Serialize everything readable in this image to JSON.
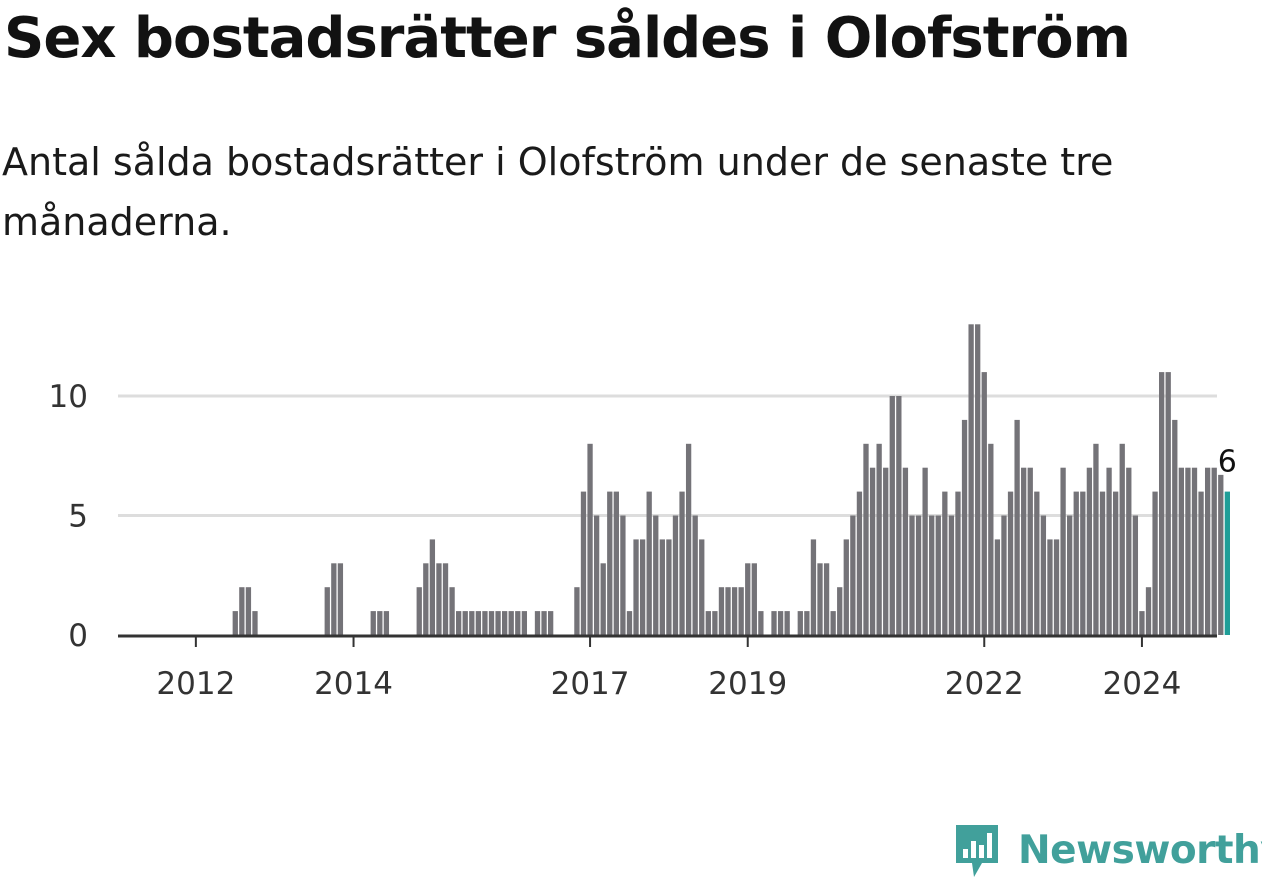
{
  "title": "Sex bostadsrätter såldes i Olofström",
  "subtitle": "Antal sålda bostadsrätter i Olofström under de senaste tre månaderna.",
  "brand": {
    "name": "Newsworthy",
    "logo_icon": "newsworthy-logo-icon"
  },
  "colors": {
    "bar": "#747378",
    "highlight": "#1f9e98",
    "grid": "#dddddd",
    "axis": "#333333",
    "brand": "#41a09b"
  },
  "chart_data": {
    "type": "bar",
    "title": "",
    "xlabel": "",
    "ylabel": "",
    "ylim": [
      0,
      13
    ],
    "yticks": [
      0,
      5,
      10
    ],
    "xticks": [
      {
        "label": "2012",
        "index": 3
      },
      {
        "label": "2014",
        "index": 27
      },
      {
        "label": "2017",
        "index": 63
      },
      {
        "label": "2019",
        "index": 87
      },
      {
        "label": "2022",
        "index": 123
      },
      {
        "label": "2024",
        "index": 147
      }
    ],
    "start_month": "2011-10",
    "frequency": "monthly",
    "values": [
      0,
      0,
      0,
      0,
      0,
      0,
      0,
      0,
      0,
      1,
      2,
      2,
      1,
      0,
      0,
      0,
      0,
      0,
      0,
      0,
      0,
      0,
      0,
      2,
      3,
      3,
      0,
      0,
      0,
      0,
      1,
      1,
      1,
      0,
      0,
      0,
      0,
      2,
      3,
      4,
      3,
      3,
      2,
      1,
      1,
      1,
      1,
      1,
      1,
      1,
      1,
      1,
      1,
      1,
      0,
      1,
      1,
      1,
      0,
      0,
      0,
      2,
      6,
      8,
      5,
      3,
      6,
      6,
      5,
      1,
      4,
      4,
      6,
      5,
      4,
      4,
      5,
      6,
      8,
      5,
      4,
      1,
      1,
      2,
      2,
      2,
      2,
      3,
      3,
      1,
      0,
      1,
      1,
      1,
      0,
      1,
      1,
      4,
      3,
      3,
      1,
      2,
      4,
      5,
      6,
      8,
      7,
      8,
      7,
      10,
      10,
      7,
      5,
      5,
      7,
      5,
      5,
      6,
      5,
      6,
      9,
      13,
      13,
      11,
      8,
      4,
      5,
      6,
      9,
      7,
      7,
      6,
      5,
      4,
      4,
      7,
      5,
      6,
      6,
      7,
      8,
      6,
      7,
      6,
      8,
      7,
      5,
      1,
      2,
      6,
      11,
      11,
      9,
      7,
      7,
      7,
      6,
      7,
      7,
      6.7,
      6
    ],
    "highlight_last": true,
    "last_value_label": "6",
    "grid": true,
    "legend": "none"
  }
}
